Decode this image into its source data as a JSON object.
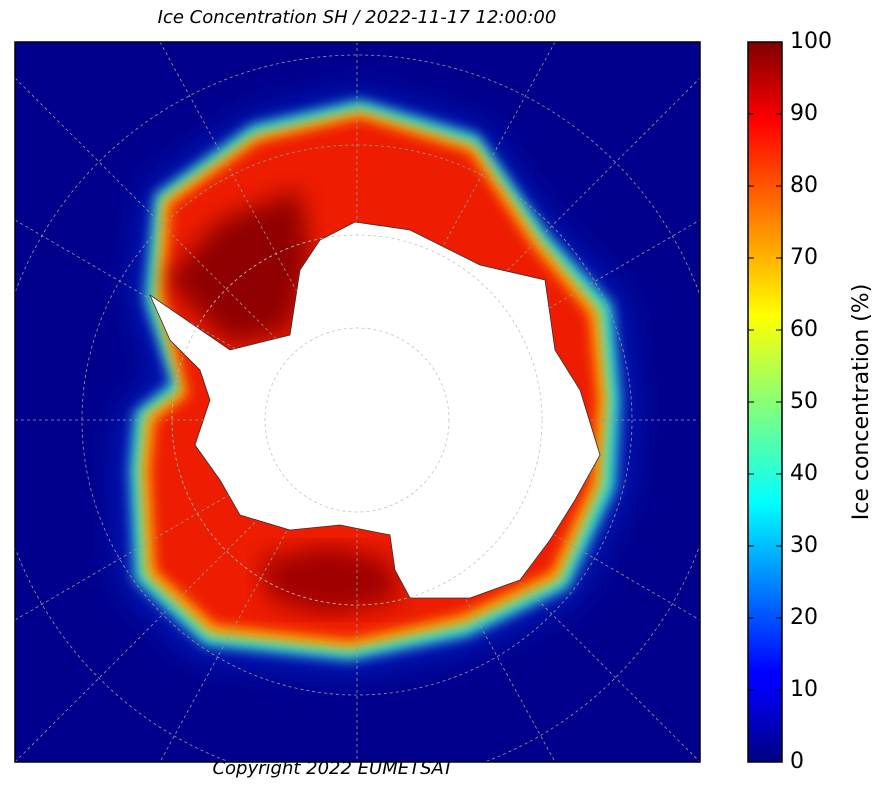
{
  "chart_data": {
    "type": "map",
    "title": "Ice Concentration SH / 2022-11-17 12:00:00",
    "footer": "Copyright 2022 EUMETSAT",
    "colorbar": {
      "label": "Ice concentration (%)",
      "lim": [
        0,
        100
      ],
      "ticks": [
        0,
        10,
        20,
        30,
        40,
        50,
        60,
        70,
        80,
        90,
        100
      ],
      "colormap": "jet"
    }
  }
}
